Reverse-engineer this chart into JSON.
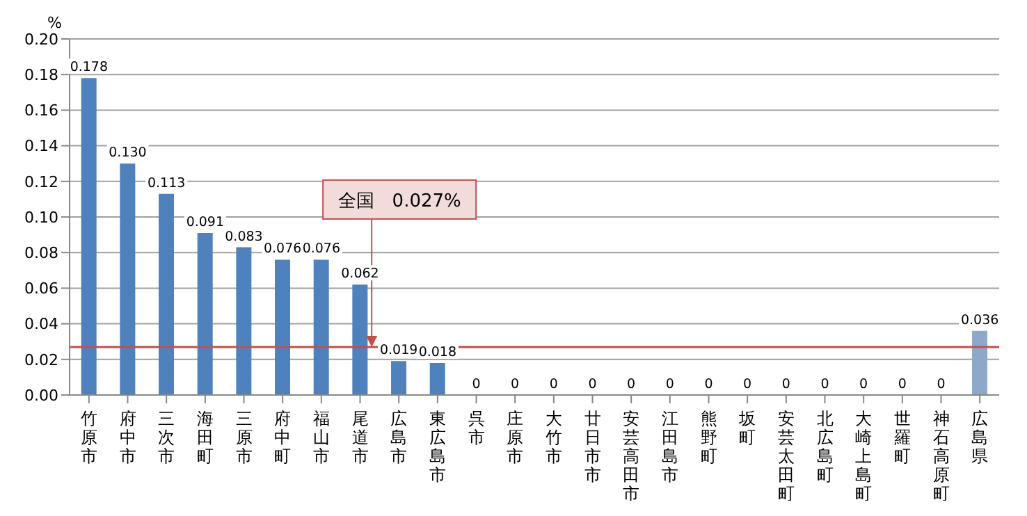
{
  "chart_data": {
    "type": "bar",
    "ylabel": "%",
    "categories": [
      "竹原市",
      "府中市",
      "三次市",
      "海田町",
      "三原市",
      "府中町",
      "福山市",
      "尾道市",
      "広島市",
      "東広島市",
      "呉市",
      "庄原市",
      "大竹市",
      "廿日市市",
      "安芸高田市",
      "江田島市",
      "熊野町",
      "坂町",
      "安芸太田町",
      "北広島町",
      "大崎上島町",
      "世羅町",
      "神石高原町",
      "広島県"
    ],
    "values": [
      0.178,
      0.13,
      0.113,
      0.091,
      0.083,
      0.076,
      0.076,
      0.062,
      0.019,
      0.018,
      0,
      0,
      0,
      0,
      0,
      0,
      0,
      0,
      0,
      0,
      0,
      0,
      0,
      0.036
    ],
    "value_labels": [
      "0.178",
      "0.130",
      "0.113",
      "0.091",
      "0.083",
      "0.076",
      "0.076",
      "0.062",
      "0.019",
      "0.018",
      "0",
      "0",
      "0",
      "0",
      "0",
      "0",
      "0",
      "0",
      "0",
      "0",
      "0",
      "0",
      "0",
      "0.036"
    ],
    "colors": [
      "#4f81bd",
      "#4f81bd",
      "#4f81bd",
      "#4f81bd",
      "#4f81bd",
      "#4f81bd",
      "#4f81bd",
      "#4f81bd",
      "#4f81bd",
      "#4f81bd",
      "#4f81bd",
      "#4f81bd",
      "#4f81bd",
      "#4f81bd",
      "#4f81bd",
      "#4f81bd",
      "#4f81bd",
      "#4f81bd",
      "#4f81bd",
      "#4f81bd",
      "#4f81bd",
      "#4f81bd",
      "#4f81bd",
      "#8ea8c9"
    ],
    "ylim": [
      0,
      0.2
    ],
    "yticks": [
      "0.00",
      "0.02",
      "0.04",
      "0.06",
      "0.08",
      "0.10",
      "0.12",
      "0.14",
      "0.16",
      "0.18",
      "0.20"
    ],
    "grid": "y",
    "legend": false,
    "ref_lines": [
      {
        "axis": "y",
        "value": 0.027,
        "label": "全国　0.027%",
        "color": "#c0504d"
      }
    ]
  }
}
